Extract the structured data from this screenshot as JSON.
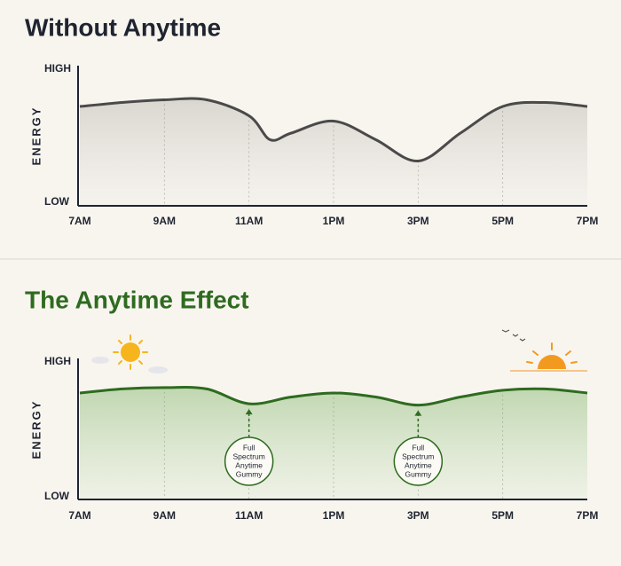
{
  "chart_data": [
    {
      "type": "line",
      "title": "Without Anytime",
      "title_color": "#1f2430",
      "ylabel": "ENERGY",
      "x": [
        7,
        8,
        9,
        10,
        11,
        11.5,
        12,
        13,
        14,
        15,
        16,
        17,
        18,
        19
      ],
      "series": [
        {
          "color": "#4a4a4a",
          "values": [
            72,
            75,
            77,
            77,
            65,
            47,
            52,
            61,
            47,
            31,
            52,
            72,
            75,
            72
          ]
        }
      ],
      "xlim": [
        7,
        19
      ],
      "xticks": [
        {
          "value": 7,
          "label": "7AM"
        },
        {
          "value": 9,
          "label": "9AM"
        },
        {
          "value": 11,
          "label": "11AM"
        },
        {
          "value": 13,
          "label": "1PM"
        },
        {
          "value": 15,
          "label": "3PM"
        },
        {
          "value": 17,
          "label": "5PM"
        },
        {
          "value": 19,
          "label": "7PM"
        }
      ],
      "ylim": [
        0,
        100
      ],
      "yticks": [
        {
          "value": 0,
          "label": "LOW"
        },
        {
          "value": 100,
          "label": "HIGH"
        }
      ],
      "grid": true
    },
    {
      "type": "line",
      "title": "The Anytime Effect",
      "title_color": "#2e6b1f",
      "ylabel": "ENERGY",
      "x": [
        7,
        8,
        9,
        10,
        11,
        12,
        13,
        14,
        15,
        16,
        17,
        18,
        19
      ],
      "series": [
        {
          "color": "#2e6b1f",
          "values": [
            77,
            80,
            81,
            80,
            69,
            74,
            77,
            74,
            68,
            74,
            79,
            80,
            77
          ]
        }
      ],
      "xlim": [
        7,
        19
      ],
      "xticks": [
        {
          "value": 7,
          "label": "7AM"
        },
        {
          "value": 9,
          "label": "9AM"
        },
        {
          "value": 11,
          "label": "11AM"
        },
        {
          "value": 13,
          "label": "1PM"
        },
        {
          "value": 15,
          "label": "3PM"
        },
        {
          "value": 17,
          "label": "5PM"
        },
        {
          "value": 19,
          "label": "7PM"
        }
      ],
      "ylim": [
        0,
        100
      ],
      "yticks": [
        {
          "value": 0,
          "label": "LOW"
        },
        {
          "value": 100,
          "label": "HIGH"
        }
      ],
      "grid": true,
      "annotations": [
        {
          "x": 11,
          "lines": [
            "Full",
            "Spectrum",
            "Anytime",
            "Gummy"
          ]
        },
        {
          "x": 15,
          "lines": [
            "Full",
            "Spectrum",
            "Anytime",
            "Gummy"
          ]
        }
      ]
    }
  ]
}
